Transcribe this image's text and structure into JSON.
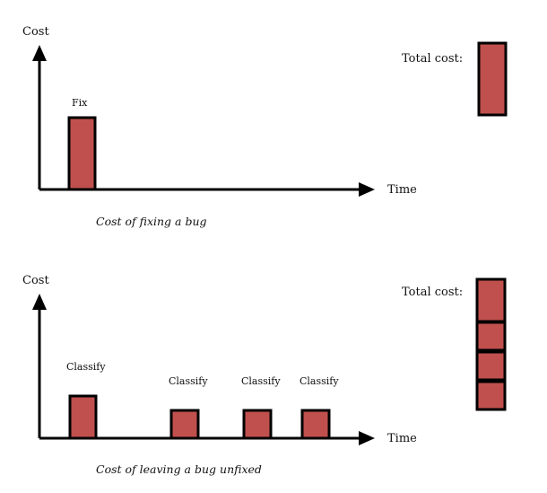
{
  "diagram1": {
    "y_axis_label": "Cost",
    "x_axis_label": "Time",
    "bar_label": "Fix",
    "total_label": "Total cost:",
    "caption": "Cost of fixing a bug"
  },
  "diagram2": {
    "y_axis_label": "Cost",
    "x_axis_label": "Time",
    "bar_labels": [
      "Classify",
      "Classify",
      "Classify",
      "Classify"
    ],
    "total_label": "Total cost:",
    "caption": "Cost of leaving a bug unfixed"
  },
  "colors": {
    "bar_fill": "#c0504d",
    "outline": "#000000"
  }
}
